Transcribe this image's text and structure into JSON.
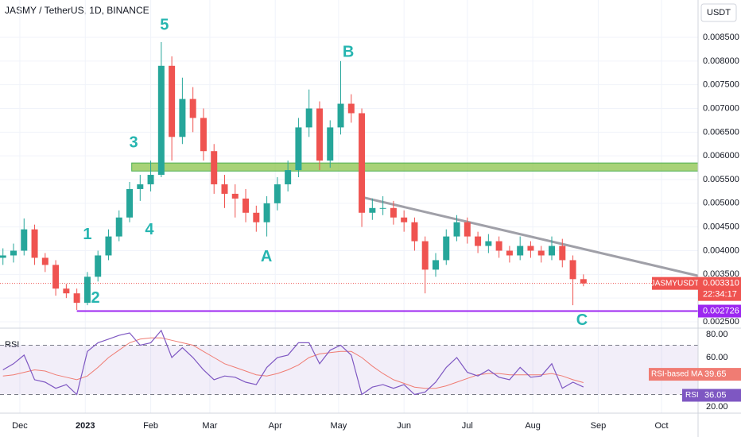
{
  "chart_data": {
    "type": "candlestick",
    "title": "JASMY / TetherUS, 1D, BINANCE",
    "currency": "USDT",
    "x": [
      -8,
      -3,
      2,
      7,
      12,
      17,
      22,
      27,
      32,
      37,
      42,
      47,
      52,
      57,
      62,
      67,
      72,
      77,
      82,
      87,
      92,
      97,
      102,
      107,
      112,
      117,
      122,
      127,
      132,
      137,
      142,
      147,
      152,
      157,
      162,
      167,
      172,
      177,
      182,
      187,
      192,
      197,
      202,
      207,
      212,
      217,
      222,
      227,
      232,
      237,
      242,
      247,
      252,
      257,
      262,
      267
    ],
    "open": [
      0.00385,
      0.0039,
      0.004,
      0.00445,
      0.00385,
      0.0037,
      0.0032,
      0.0031,
      0.0029,
      0.00345,
      0.0039,
      0.0043,
      0.0047,
      0.0053,
      0.0054,
      0.0056,
      0.0079,
      0.0064,
      0.0072,
      0.0068,
      0.0061,
      0.0054,
      0.0052,
      0.0051,
      0.0048,
      0.0046,
      0.005,
      0.0054,
      0.0057,
      0.0066,
      0.007,
      0.0059,
      0.0066,
      0.0071,
      0.0069,
      0.0048,
      0.0049,
      0.0049,
      0.0047,
      0.0046,
      0.0042,
      0.0036,
      0.0038,
      0.0043,
      0.0046,
      0.0043,
      0.0041,
      0.0042,
      0.004,
      0.0039,
      0.0041,
      0.004,
      0.0039,
      0.0041,
      0.0038,
      0.0034
    ],
    "high": [
      0.00405,
      0.00415,
      0.00468,
      0.00455,
      0.00395,
      0.0038,
      0.0033,
      0.0032,
      0.00355,
      0.004,
      0.00445,
      0.00485,
      0.00545,
      0.0056,
      0.0059,
      0.0084,
      0.0081,
      0.00765,
      0.00745,
      0.007,
      0.00625,
      0.0056,
      0.0054,
      0.0053,
      0.00495,
      0.00515,
      0.00555,
      0.0059,
      0.0068,
      0.0074,
      0.00715,
      0.00675,
      0.008,
      0.0073,
      0.007,
      0.0051,
      0.00515,
      0.00505,
      0.00485,
      0.0047,
      0.0043,
      0.00395,
      0.00445,
      0.00475,
      0.0047,
      0.0044,
      0.00435,
      0.0043,
      0.0041,
      0.0043,
      0.0042,
      0.0041,
      0.0043,
      0.00425,
      0.0039,
      0.0035
    ],
    "low": [
      0.0037,
      0.00375,
      0.0039,
      0.0037,
      0.00355,
      0.00305,
      0.003,
      0.00275,
      0.00285,
      0.00335,
      0.0038,
      0.0042,
      0.0046,
      0.00505,
      0.00525,
      0.00555,
      0.0059,
      0.00625,
      0.0065,
      0.0059,
      0.0052,
      0.0049,
      0.0047,
      0.0046,
      0.0044,
      0.0043,
      0.00485,
      0.00525,
      0.00555,
      0.0064,
      0.0057,
      0.00575,
      0.00645,
      0.0067,
      0.0045,
      0.00465,
      0.00475,
      0.00455,
      0.0044,
      0.004,
      0.0031,
      0.00345,
      0.0037,
      0.0042,
      0.00415,
      0.00395,
      0.00395,
      0.00385,
      0.00375,
      0.0038,
      0.00385,
      0.00375,
      0.0038,
      0.00365,
      0.00285,
      0.00325
    ],
    "close": [
      0.0039,
      0.004,
      0.00445,
      0.00385,
      0.0037,
      0.0032,
      0.0031,
      0.0029,
      0.00345,
      0.0039,
      0.0043,
      0.0047,
      0.0053,
      0.0054,
      0.0056,
      0.0079,
      0.0064,
      0.0072,
      0.0068,
      0.0061,
      0.0054,
      0.0052,
      0.0051,
      0.0048,
      0.0046,
      0.005,
      0.0054,
      0.0057,
      0.0066,
      0.007,
      0.0059,
      0.0066,
      0.0071,
      0.0069,
      0.0048,
      0.0049,
      0.0049,
      0.0047,
      0.0046,
      0.0042,
      0.0036,
      0.0038,
      0.0043,
      0.0046,
      0.0043,
      0.0041,
      0.0042,
      0.004,
      0.0039,
      0.0041,
      0.004,
      0.0039,
      0.0041,
      0.0038,
      0.0034,
      0.00331
    ],
    "up_color": "#26a69a",
    "down_color": "#ef5350",
    "xlim": [
      -9.4,
      321.3
    ],
    "xticks": [
      {
        "value": 0,
        "label": "Dec"
      },
      {
        "value": 31,
        "label": "2023"
      },
      {
        "value": 62,
        "label": "Feb"
      },
      {
        "value": 90,
        "label": "Mar"
      },
      {
        "value": 121,
        "label": "Apr"
      },
      {
        "value": 151,
        "label": "May"
      },
      {
        "value": 182,
        "label": "Jun"
      },
      {
        "value": 212,
        "label": "Jul"
      },
      {
        "value": 243,
        "label": "Aug"
      },
      {
        "value": 274,
        "label": "Sep"
      },
      {
        "value": 304,
        "label": "Oct"
      }
    ],
    "ylim": [
      0.002366,
      0.009288
    ],
    "yticks": [
      {
        "value": 0.0025,
        "label": "0.002500"
      },
      {
        "value": 0.003,
        "label": "0.003000"
      },
      {
        "value": 0.0035,
        "label": "0.003500"
      },
      {
        "value": 0.004,
        "label": "0.004000"
      },
      {
        "value": 0.0045,
        "label": "0.004500"
      },
      {
        "value": 0.005,
        "label": "0.005000"
      },
      {
        "value": 0.0055,
        "label": "0.005500"
      },
      {
        "value": 0.006,
        "label": "0.006000"
      },
      {
        "value": 0.0065,
        "label": "0.006500"
      },
      {
        "value": 0.007,
        "label": "0.007000"
      },
      {
        "value": 0.0075,
        "label": "0.007500"
      },
      {
        "value": 0.008,
        "label": "0.008000"
      },
      {
        "value": 0.0085,
        "label": "0.008500"
      }
    ],
    "symbol_label": "JASMYUSDT",
    "last_price": {
      "value": 0.00331,
      "label": "0.003310"
    },
    "countdown": "22:34:17",
    "support": {
      "value": 0.002726,
      "label": "0.002726",
      "start": 27,
      "color": "#9c27f0"
    },
    "zone": {
      "low": 0.00568,
      "high": 0.00585,
      "start": 53,
      "color": "#8bc34a"
    },
    "trendline": {
      "x": [
        162,
        321.3
      ],
      "y": [
        0.00513,
        0.00347
      ],
      "color": "#a0a0a8"
    },
    "annotations": [
      {
        "text": "5",
        "x": 68.5,
        "y": 0.008752
      },
      {
        "text": "3",
        "x": 53.9,
        "y": 0.00627
      },
      {
        "text": "1",
        "x": 32,
        "y": 0.00433
      },
      {
        "text": "2",
        "x": 35.8,
        "y": 0.00299
      },
      {
        "text": "4",
        "x": 61.4,
        "y": 0.00443
      },
      {
        "text": "A",
        "x": 116.8,
        "y": 0.00386
      },
      {
        "text": "B",
        "x": 155.6,
        "y": 0.00818
      },
      {
        "text": "C",
        "x": 266.3,
        "y": 0.00252
      }
    ],
    "annotation_color": "#26b5b0",
    "rsi": {
      "title": "RSI",
      "name": "RSI",
      "color": "#7e57c2",
      "values": [
        50,
        55,
        62,
        42,
        40,
        35,
        38,
        30,
        65,
        72,
        75,
        78,
        80,
        70,
        72,
        82,
        60,
        68,
        60,
        50,
        42,
        45,
        44,
        40,
        38,
        52,
        60,
        62,
        72,
        72,
        55,
        66,
        70,
        62,
        30,
        36,
        38,
        35,
        38,
        30,
        32,
        40,
        52,
        60,
        48,
        45,
        50,
        44,
        42,
        52,
        44,
        45,
        55,
        35,
        40,
        36.05
      ],
      "value_label": "36.05",
      "ma": {
        "name": "RSI-based MA",
        "color": "#f07c73",
        "value_label": "39.65",
        "values": [
          45,
          46,
          48,
          50,
          49,
          46,
          44,
          42,
          45,
          52,
          60,
          66,
          72,
          75,
          76,
          76,
          74,
          72,
          70,
          65,
          60,
          55,
          52,
          49,
          46,
          45,
          47,
          50,
          54,
          60,
          63,
          64,
          65,
          65,
          60,
          53,
          47,
          42,
          39,
          36,
          35,
          35,
          37,
          40,
          43,
          46,
          47,
          47,
          46,
          46,
          46,
          46,
          47,
          45,
          42,
          39.65
        ]
      },
      "band": [
        30,
        70
      ],
      "ylim": [
        14.8,
        83.9
      ],
      "yticks": [
        {
          "value": 20,
          "label": "20.00"
        },
        {
          "value": 60,
          "label": "60.00"
        },
        {
          "value": 80,
          "label": "80.00"
        }
      ]
    }
  }
}
